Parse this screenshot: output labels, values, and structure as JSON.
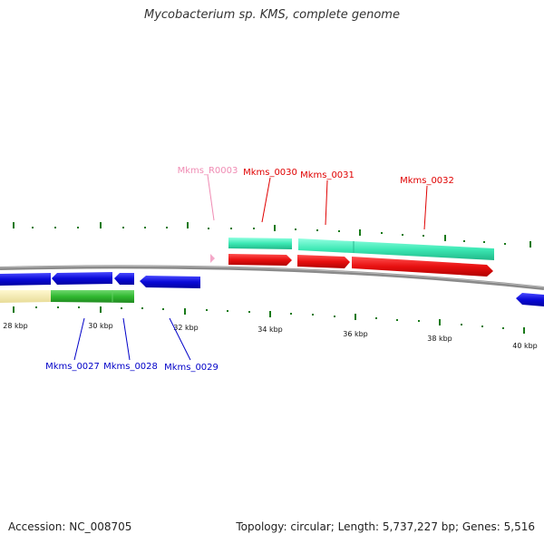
{
  "title": "Mycobacterium sp. KMS, complete genome",
  "footer": {
    "accession": "Accession: NC_008705",
    "stats": "Topology: circular; Length: 5,737,227 bp; Genes: 5,516"
  },
  "scale_labels": [
    "28 kbp",
    "30 kbp",
    "32 kbp",
    "34 kbp",
    "36 kbp",
    "38 kbp",
    "40 kbp"
  ],
  "top_labels": [
    {
      "name": "Mkms_R0003",
      "color": "#f08cb4"
    },
    {
      "name": "Mkms_0030",
      "color": "#e00000"
    },
    {
      "name": "Mkms_0031",
      "color": "#e00000"
    },
    {
      "name": "Mkms_0032",
      "color": "#e00000"
    }
  ],
  "bottom_labels": [
    {
      "name": "Mkms_0027",
      "color": "#0000c8"
    },
    {
      "name": "Mkms_0028",
      "color": "#0000c8"
    },
    {
      "name": "Mkms_0029",
      "color": "#0000c8"
    }
  ],
  "colors": {
    "backbone": "#808080",
    "forward_gene": "#e81010",
    "reverse_gene": "#0a0ad8",
    "forward_cds": "#3ce8b4",
    "reverse_cds": "#30b830",
    "reverse_cds_pale": "#f4eaa8",
    "rna": "#f4a8c8",
    "tick": "#1a7a1a"
  }
}
